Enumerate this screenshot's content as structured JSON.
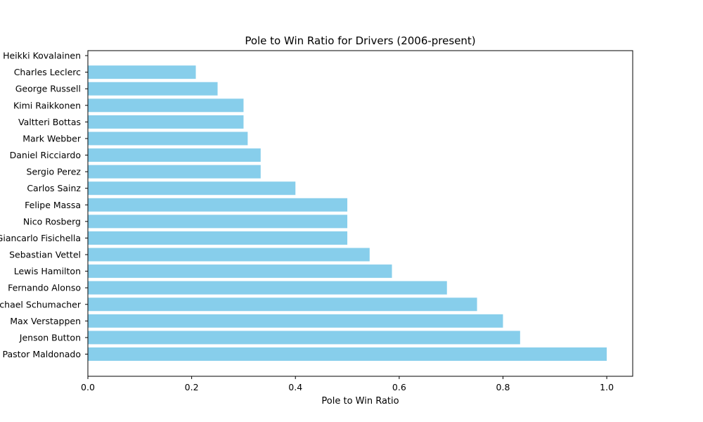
{
  "chart_data": {
    "type": "bar",
    "orientation": "horizontal",
    "title": "Pole to Win Ratio for Drivers (2006-present)",
    "xlabel": "Pole to Win Ratio",
    "ylabel": "",
    "xlim": [
      0.0,
      1.05
    ],
    "x_ticks": [
      "0.0",
      "0.2",
      "0.4",
      "0.6",
      "0.8",
      "1.0"
    ],
    "x_tick_values": [
      0.0,
      0.2,
      0.4,
      0.6,
      0.8,
      1.0
    ],
    "grid": false,
    "bar_color": "#87ceeb",
    "categories": [
      "Pastor Maldonado",
      "Jenson Button",
      "Max Verstappen",
      "Michael Schumacher",
      "Fernando Alonso",
      "Lewis Hamilton",
      "Sebastian Vettel",
      "Giancarlo Fisichella",
      "Nico Rosberg",
      "Felipe Massa",
      "Carlos Sainz",
      "Sergio Perez",
      "Daniel Ricciardo",
      "Mark Webber",
      "Valtteri Bottas",
      "Kimi Raikkonen",
      "George Russell",
      "Charles Leclerc",
      "Heikki Kovalainen"
    ],
    "values": [
      1.0,
      0.833,
      0.8,
      0.75,
      0.692,
      0.586,
      0.543,
      0.5,
      0.5,
      0.5,
      0.4,
      0.333,
      0.333,
      0.308,
      0.3,
      0.3,
      0.25,
      0.208,
      0.0
    ]
  }
}
